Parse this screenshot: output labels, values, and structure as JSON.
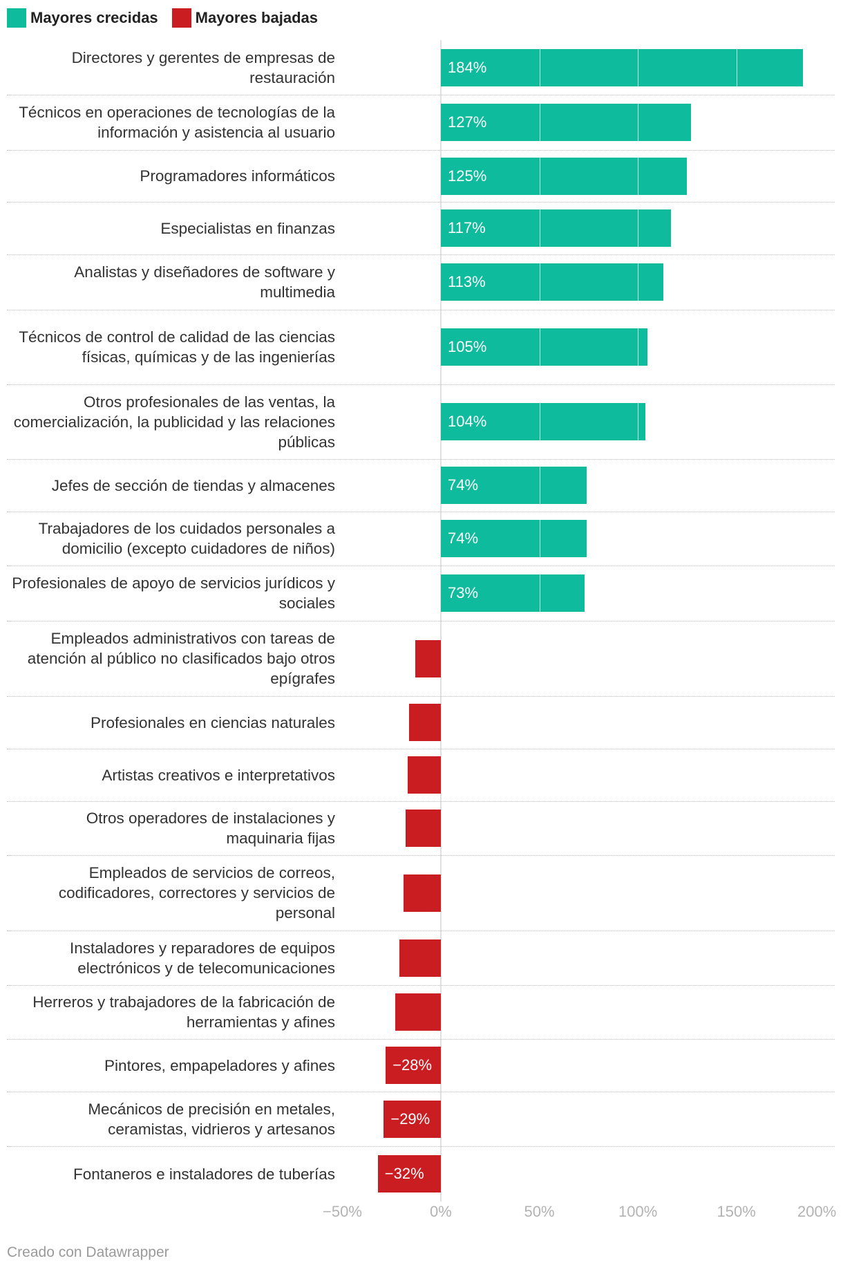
{
  "colors": {
    "increase": "#0ebb9c",
    "decrease": "#c91d22",
    "bar_text": "#ffffff"
  },
  "chart_data": {
    "type": "bar",
    "orientation": "horizontal",
    "title": "",
    "xlabel": "",
    "ylabel": "",
    "xlim": [
      -50,
      200
    ],
    "x_ticks": [
      -50,
      0,
      50,
      100,
      150,
      200
    ],
    "x_tick_labels": [
      "−50%",
      "0%",
      "50%",
      "100%",
      "150%",
      "200%"
    ],
    "legend": [
      {
        "name": "Mayores crecidas",
        "color": "#0ebb9c"
      },
      {
        "name": "Mayores bajadas",
        "color": "#c91d22"
      }
    ],
    "legend_position": "top-left",
    "rows": [
      {
        "label": "Directores y gerentes de empresas de restauración",
        "value": 184,
        "value_label": "184%",
        "group": "increase"
      },
      {
        "label": "Técnicos en operaciones de tecnologías de la información y asistencia al usuario",
        "value": 127,
        "value_label": "127%",
        "group": "increase"
      },
      {
        "label": "Programadores informáticos",
        "value": 125,
        "value_label": "125%",
        "group": "increase"
      },
      {
        "label": "Especialistas en finanzas",
        "value": 117,
        "value_label": "117%",
        "group": "increase"
      },
      {
        "label": "Analistas y diseñadores de software y multimedia",
        "value": 113,
        "value_label": "113%",
        "group": "increase"
      },
      {
        "label": "Técnicos de control de calidad de las ciencias físicas, químicas y de las ingenierías",
        "value": 105,
        "value_label": "105%",
        "group": "increase"
      },
      {
        "label": "Otros profesionales de las ventas, la comercialización, la publicidad y las relaciones públicas",
        "value": 104,
        "value_label": "104%",
        "group": "increase"
      },
      {
        "label": "Jefes de sección de tiendas y almacenes",
        "value": 74,
        "value_label": "74%",
        "group": "increase"
      },
      {
        "label": "Trabajadores de los cuidados personales a domicilio (excepto cuidadores de niños)",
        "value": 74,
        "value_label": "74%",
        "group": "increase"
      },
      {
        "label": "Profesionales de apoyo de servicios jurídicos y sociales",
        "value": 73,
        "value_label": "73%",
        "group": "increase"
      },
      {
        "label": "Empleados administrativos con tareas de atención al público no clasificados bajo otros epígrafes",
        "value": -13,
        "value_label": null,
        "group": "decrease"
      },
      {
        "label": "Profesionales en ciencias naturales",
        "value": -16,
        "value_label": null,
        "group": "decrease"
      },
      {
        "label": "Artistas creativos e interpretativos",
        "value": -17,
        "value_label": null,
        "group": "decrease"
      },
      {
        "label": "Otros operadores de instalaciones y maquinaria fijas",
        "value": -18,
        "value_label": null,
        "group": "decrease"
      },
      {
        "label": "Empleados de servicios de correos, codificadores, correctores y servicios de personal",
        "value": -19,
        "value_label": null,
        "group": "decrease"
      },
      {
        "label": "Instaladores y reparadores de equipos electrónicos y de telecomunicaciones",
        "value": -21,
        "value_label": null,
        "group": "decrease"
      },
      {
        "label": "Herreros y trabajadores de la fabricación de herramientas y afines",
        "value": -23,
        "value_label": null,
        "group": "decrease"
      },
      {
        "label": "Pintores, empapeladores y afines",
        "value": -28,
        "value_label": "−28%",
        "group": "decrease"
      },
      {
        "label": "Mecánicos de precisión en metales, ceramistas, vidrieros y artesanos",
        "value": -29,
        "value_label": "−29%",
        "group": "decrease"
      },
      {
        "label": "Fontaneros e instaladores de tuberías",
        "value": -32,
        "value_label": "−32%",
        "group": "decrease"
      }
    ]
  },
  "footer": {
    "credit": "Creado con Datawrapper"
  }
}
